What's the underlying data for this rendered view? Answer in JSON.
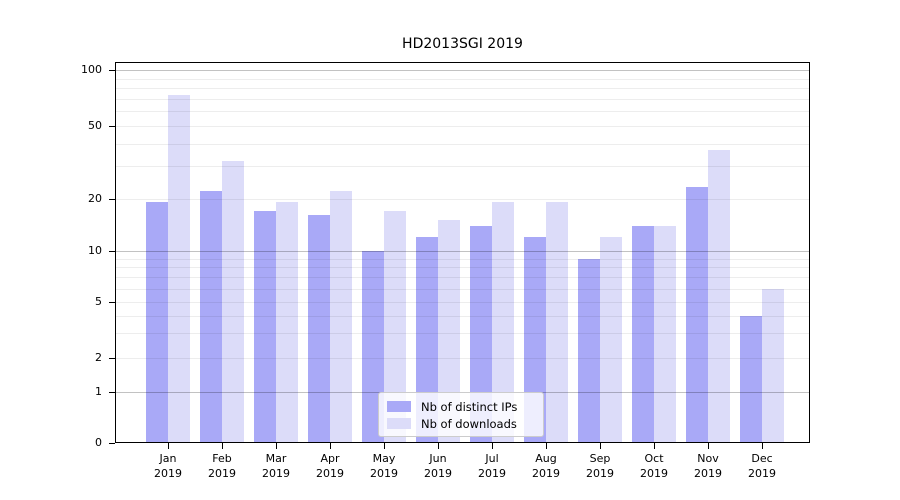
{
  "figure": {
    "title": "HD2013SGI 2019"
  },
  "colors": {
    "distinct_ips": "#a9a9f7",
    "downloads": "#dcdcf9",
    "major_grid": "rgba(0,0,0,0.24)",
    "minor_grid": "rgba(0,0,0,0.07)",
    "axis": "#000000",
    "legend_border": "#cccccc"
  },
  "chart_data": {
    "type": "bar",
    "title": "HD2013SGI 2019",
    "categories": [
      "Jan 2019",
      "Feb 2019",
      "Mar 2019",
      "Apr 2019",
      "May 2019",
      "Jun 2019",
      "Jul 2019",
      "Aug 2019",
      "Sep 2019",
      "Oct 2019",
      "Nov 2019",
      "Dec 2019"
    ],
    "series": [
      {
        "name": "Nb of distinct IPs",
        "values": [
          19,
          22,
          17,
          16,
          10,
          12,
          14,
          12,
          9,
          14,
          23,
          4
        ]
      },
      {
        "name": "Nb of downloads",
        "values": [
          73,
          32,
          19,
          22,
          17,
          15,
          19,
          19,
          12,
          14,
          37,
          6
        ]
      }
    ],
    "xlabel": "",
    "ylabel": "",
    "yscale": "symlog",
    "ylim": [
      0,
      110
    ],
    "yticks": [
      100,
      50,
      20,
      10,
      5,
      2,
      1,
      0
    ],
    "major_gridlines": [
      1,
      10,
      100
    ],
    "minor_gridlines": [
      2,
      3,
      4,
      5,
      6,
      7,
      8,
      9,
      20,
      30,
      40,
      50,
      60,
      70,
      80,
      90
    ],
    "grid": true,
    "legend_position": "lower center"
  }
}
